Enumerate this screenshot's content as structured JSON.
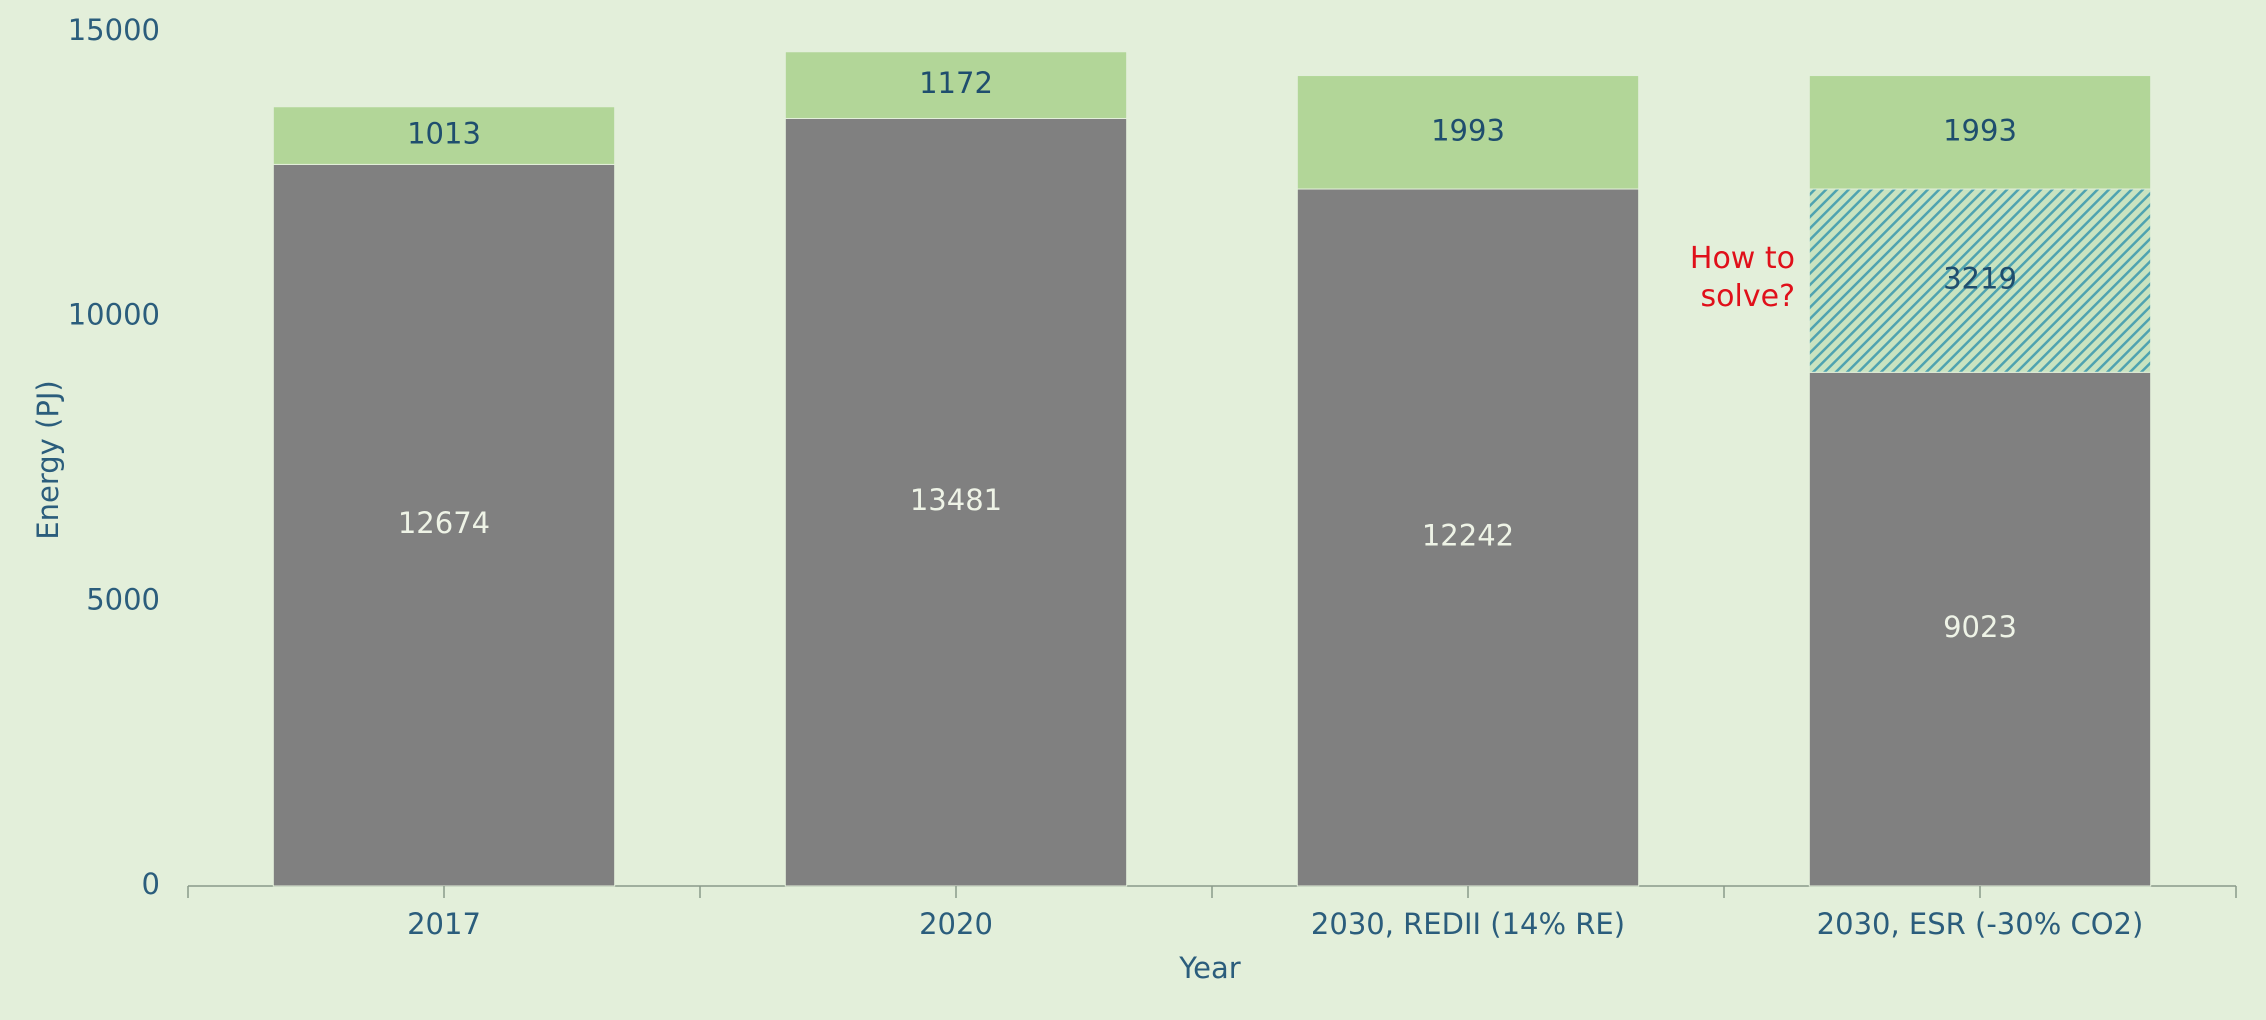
{
  "chart_data": {
    "type": "stacked_bar",
    "x_label": "Year",
    "y_label": "Energy (PJ)",
    "categories": [
      "2017",
      "2020",
      "2030, REDII (14% RE)",
      "2030, ESR (-30% CO2)"
    ],
    "series": [
      {
        "color": "#808080",
        "label_color": "#eef3e6",
        "values": [
          12674,
          13481,
          12242,
          9023
        ]
      },
      {
        "color": "#4fa3b0",
        "pattern": "hatch",
        "label_color": "#1f4e6e",
        "values": [
          null,
          null,
          null,
          3219
        ]
      },
      {
        "color": "#b2d698",
        "label_color": "#1f4e6e",
        "values": [
          1013,
          1172,
          1993,
          1993
        ]
      }
    ],
    "annotation": "How to solve?",
    "ylim": [
      0,
      15000
    ],
    "yticks": [
      0,
      5000,
      10000,
      15000
    ],
    "grid": false
  }
}
